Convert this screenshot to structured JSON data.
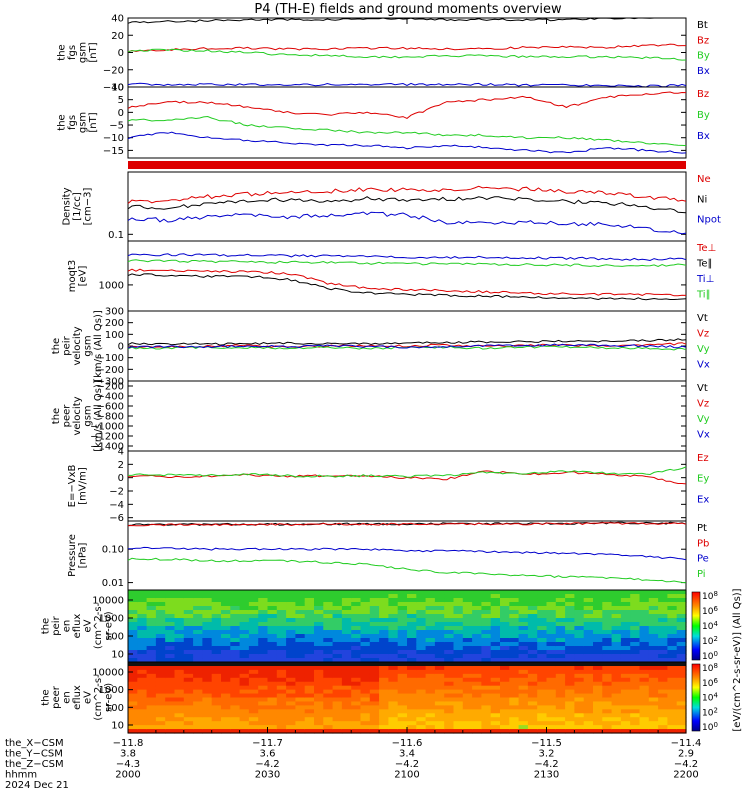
{
  "title": "P4 (TH-E) fields and ground moments overview",
  "colors": {
    "black": "#000000",
    "red": "#dd0000",
    "green": "#22cc22",
    "blue": "#0000cc"
  },
  "chart_data": [
    {
      "type": "line",
      "ylabel": [
        "the",
        "fgs",
        "gsm",
        "[nT]"
      ],
      "yticks": [
        "40",
        "20",
        "0",
        "−20",
        "−40"
      ],
      "ylim": [
        -40,
        40
      ],
      "series": [
        {
          "name": "Bt",
          "color": "black",
          "values": [
            35,
            36,
            37,
            38,
            38,
            38,
            39,
            39,
            38,
            38,
            38,
            38,
            40,
            40,
            42
          ]
        },
        {
          "name": "Bz",
          "color": "red",
          "values": [
            2,
            3,
            5,
            5,
            4,
            4,
            5,
            5,
            4,
            4,
            6,
            6,
            6,
            8,
            9
          ]
        },
        {
          "name": "By",
          "color": "green",
          "values": [
            2,
            3,
            2,
            0,
            -3,
            -3,
            -5,
            -5,
            -4,
            -4,
            -5,
            -5,
            -5,
            -6,
            -8
          ]
        },
        {
          "name": "Bx",
          "color": "blue",
          "values": [
            -36,
            -38,
            -37,
            -37,
            -38,
            -37,
            -37,
            -37,
            -37,
            -37,
            -38,
            -38,
            -38,
            -39,
            -38
          ]
        }
      ]
    },
    {
      "type": "line",
      "ylabel": [
        "the",
        "fgs",
        "gsm",
        "[nT]"
      ],
      "yticks": [
        "10",
        "5",
        "0",
        "−5",
        "−10",
        "−15"
      ],
      "ylim": [
        -18,
        10
      ],
      "series": [
        {
          "name": "Bz",
          "color": "red",
          "values": [
            2,
            4,
            4,
            2,
            0,
            -1,
            0,
            -2,
            4,
            5,
            6,
            2,
            6,
            7,
            8
          ]
        },
        {
          "name": "By",
          "color": "green",
          "values": [
            -3,
            -3,
            -2,
            -5,
            -6,
            -7,
            -8,
            -8,
            -9,
            -9,
            -10,
            -10,
            -11,
            -12,
            -13
          ]
        },
        {
          "name": "Bx",
          "color": "blue",
          "values": [
            -10,
            -8,
            -10,
            -11,
            -12,
            -13,
            -13,
            -14,
            -13,
            -14,
            -15,
            -16,
            -14,
            -15,
            -16
          ]
        }
      ]
    },
    {
      "type": "line",
      "ylabel": [
        "Density",
        "[1/cc]",
        "[cm−3]"
      ],
      "yticks": [
        "0.1"
      ],
      "log": true,
      "ylim": [
        0.08,
        0.8
      ],
      "series": [
        {
          "name": "Ne",
          "color": "red",
          "values": [
            0.3,
            0.3,
            0.35,
            0.38,
            0.4,
            0.42,
            0.45,
            0.44,
            0.45,
            0.47,
            0.45,
            0.42,
            0.4,
            0.35,
            0.3
          ]
        },
        {
          "name": "Ni",
          "color": "black",
          "values": [
            0.25,
            0.24,
            0.27,
            0.3,
            0.32,
            0.3,
            0.33,
            0.32,
            0.32,
            0.33,
            0.32,
            0.3,
            0.28,
            0.25,
            0.2
          ]
        },
        {
          "name": "Npot",
          "color": "blue",
          "values": [
            0.17,
            0.16,
            0.18,
            0.19,
            0.18,
            0.19,
            0.2,
            0.19,
            0.15,
            0.14,
            0.15,
            0.14,
            0.14,
            0.12,
            0.1
          ]
        }
      ]
    },
    {
      "type": "line",
      "ylabel": [
        "moqt3",
        "[eV]"
      ],
      "yticks": [
        "1000"
      ],
      "log": true,
      "ylim": [
        200,
        15000
      ],
      "series": [
        {
          "name": "Te⊥",
          "color": "red",
          "values": [
            2500,
            2400,
            2300,
            2300,
            2000,
            1100,
            800,
            750,
            700,
            650,
            600,
            580,
            560,
            550,
            500
          ]
        },
        {
          "name": "Te∥",
          "color": "black",
          "values": [
            1900,
            1800,
            1700,
            1700,
            1400,
            800,
            600,
            560,
            520,
            500,
            480,
            450,
            430,
            420,
            400
          ]
        },
        {
          "name": "Ti⊥",
          "color": "blue",
          "values": [
            6500,
            6400,
            6300,
            6200,
            6000,
            6000,
            5800,
            5600,
            5500,
            5500,
            5300,
            5200,
            5000,
            4800,
            5000
          ]
        },
        {
          "name": "Ti∥",
          "color": "green",
          "values": [
            4500,
            4400,
            4200,
            4200,
            4000,
            4000,
            3800,
            3700,
            3600,
            3600,
            3500,
            3400,
            3300,
            3200,
            3500
          ]
        }
      ]
    },
    {
      "type": "line",
      "ylabel": [
        "the",
        "peir",
        "velocity",
        "gsm",
        "[km/s (All Qs)]"
      ],
      "yticks": [
        "300",
        "200",
        "100",
        "0",
        "−100",
        "−200",
        "−300"
      ],
      "ylim": [
        -300,
        300
      ],
      "series": [
        {
          "name": "Vt",
          "color": "black",
          "values": [
            20,
            20,
            15,
            20,
            25,
            20,
            20,
            25,
            30,
            35,
            40,
            40,
            40,
            45,
            60
          ]
        },
        {
          "name": "Vz",
          "color": "red",
          "values": [
            -10,
            -5,
            0,
            5,
            -10,
            0,
            5,
            0,
            10,
            -5,
            10,
            5,
            0,
            10,
            20
          ]
        },
        {
          "name": "Vy",
          "color": "green",
          "values": [
            -15,
            -20,
            -10,
            -15,
            -20,
            -10,
            -20,
            -15,
            -10,
            -20,
            -10,
            -5,
            -15,
            -20,
            -30
          ]
        },
        {
          "name": "Vx",
          "color": "blue",
          "values": [
            -10,
            -5,
            -5,
            0,
            -5,
            0,
            -5,
            -10,
            -5,
            0,
            5,
            10,
            5,
            0,
            -10
          ]
        }
      ]
    },
    {
      "type": "line",
      "ylabel": [
        "the",
        "peer",
        "velocity",
        "gsm",
        "[km/s (All Qs)]"
      ],
      "yticks": [
        "−200",
        "−400",
        "−600",
        "−800",
        "−1000",
        "−1200",
        "−1400"
      ],
      "ylim": [
        -1500,
        -100
      ],
      "series": [
        {
          "name": "Vt",
          "color": "black",
          "values": []
        },
        {
          "name": "Vz",
          "color": "red",
          "values": []
        },
        {
          "name": "Vy",
          "color": "green",
          "values": []
        },
        {
          "name": "Vx",
          "color": "blue",
          "values": []
        }
      ]
    },
    {
      "type": "line",
      "ylabel": [
        "E=−VxB",
        "[mV/m]"
      ],
      "yticks": [
        "4",
        "2",
        "0",
        "−2",
        "−4",
        "−6"
      ],
      "ylim": [
        -6.5,
        4
      ],
      "series": [
        {
          "name": "Ez",
          "color": "red",
          "values": [
            0.3,
            0.1,
            0.2,
            0.4,
            0.2,
            0.3,
            0.2,
            0.0,
            -0.2,
            1.0,
            0.5,
            0.8,
            0.5,
            0.2,
            -1.0
          ]
        },
        {
          "name": "Ey",
          "color": "green",
          "values": [
            0.5,
            0.4,
            0.3,
            0.5,
            0.3,
            0.2,
            0.3,
            0.2,
            0.3,
            0.8,
            0.6,
            1.0,
            0.7,
            0.5,
            1.5
          ]
        },
        {
          "name": "Ex",
          "color": "blue",
          "values": []
        }
      ]
    },
    {
      "type": "line",
      "ylabel": [
        "Pressure",
        "[nPa]"
      ],
      "yticks": [
        "0.10",
        "0.01"
      ],
      "log": true,
      "ylim": [
        0.006,
        0.7
      ],
      "series": [
        {
          "name": "Pt",
          "color": "black",
          "values": [
            0.55,
            0.55,
            0.55,
            0.56,
            0.56,
            0.57,
            0.57,
            0.57,
            0.58,
            0.58,
            0.58,
            0.59,
            0.6,
            0.6,
            0.6
          ]
        },
        {
          "name": "Pb",
          "color": "red",
          "values": [
            0.54,
            0.54,
            0.54,
            0.55,
            0.55,
            0.56,
            0.56,
            0.56,
            0.57,
            0.57,
            0.57,
            0.58,
            0.59,
            0.59,
            0.59
          ]
        },
        {
          "name": "Pe",
          "color": "blue",
          "values": [
            0.11,
            0.11,
            0.1,
            0.1,
            0.1,
            0.1,
            0.1,
            0.09,
            0.09,
            0.085,
            0.08,
            0.075,
            0.07,
            0.06,
            0.05
          ]
        },
        {
          "name": "Pi",
          "color": "green",
          "values": [
            0.05,
            0.05,
            0.045,
            0.045,
            0.045,
            0.04,
            0.035,
            0.025,
            0.02,
            0.018,
            0.016,
            0.015,
            0.014,
            0.012,
            0.01
          ]
        }
      ]
    },
    {
      "type": "heatmap",
      "ylabel": [
        "the",
        "peir",
        "en",
        "eflux",
        "eV",
        "(cm^2-s-",
        "sr-eV)"
      ],
      "yticks": [
        "10000",
        "1000",
        "100",
        "10"
      ]
    },
    {
      "type": "heatmap",
      "ylabel": [
        "the",
        "peer",
        "en",
        "eflux",
        "eV",
        "(cm^2-s-",
        "sr-eV)"
      ],
      "yticks": [
        "10000",
        "1000",
        "100",
        "10"
      ]
    }
  ],
  "colorbar": {
    "ticks": [
      "10^8",
      "10^6",
      "10^4",
      "10^2",
      "10^0"
    ],
    "label": "[eV/(cm^2-s-sr-eV)] (All Qs)]"
  },
  "xaxis": {
    "ticks": [
      "−11.8",
      "−11.7",
      "−11.6",
      "−11.5",
      "−11.4"
    ],
    "rows": [
      {
        "label": "the_X−CSM",
        "values": [
          "−11.8",
          "−11.7",
          "−11.6",
          "−11.5",
          "−11.4"
        ]
      },
      {
        "label": "the_Y−CSM",
        "values": [
          "3.8",
          "3.6",
          "3.4",
          "3.2",
          "2.9"
        ]
      },
      {
        "label": "the_Z−CSM",
        "values": [
          "−4.3",
          "−4.2",
          "−4.2",
          "−4.2",
          "−4.2"
        ]
      },
      {
        "label": "hhmm",
        "values": [
          "2000",
          "2030",
          "2100",
          "2130",
          "2200"
        ]
      }
    ],
    "date": "2024 Dec 21"
  }
}
